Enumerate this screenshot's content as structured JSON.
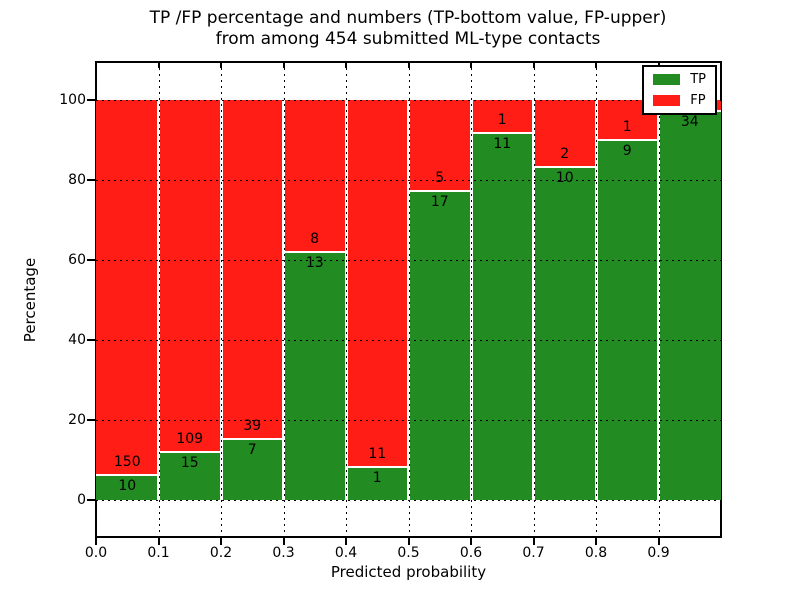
{
  "chart_data": {
    "type": "bar",
    "stacked": true,
    "normalized": "percent-of-bin",
    "title": "TP /FP percentage and numbers (TP-bottom value, FP-upper)",
    "subtitle": "from among 454 submitted ML-type contacts",
    "xlabel": "Predicted probability",
    "ylabel": "Percentage",
    "total_submitted": 454,
    "bins": [
      "0.0-0.1",
      "0.1-0.2",
      "0.2-0.3",
      "0.3-0.4",
      "0.4-0.5",
      "0.5-0.6",
      "0.6-0.7",
      "0.7-0.8",
      "0.8-0.9",
      "0.9-1.0"
    ],
    "series": [
      {
        "name": "TP",
        "color": "#228b22",
        "values": [
          10,
          15,
          7,
          13,
          1,
          17,
          11,
          10,
          9,
          34
        ]
      },
      {
        "name": "FP",
        "color": "#ff1d15",
        "values": [
          150,
          109,
          39,
          8,
          11,
          5,
          1,
          2,
          1,
          1
        ]
      }
    ],
    "tp_percent": [
      6.2,
      12.1,
      15.2,
      61.9,
      8.3,
      77.3,
      91.7,
      83.3,
      90.0,
      97.1
    ],
    "yticks": [
      0,
      20,
      40,
      60,
      80,
      100
    ],
    "xticks": [
      "0.0",
      "0.1",
      "0.2",
      "0.3",
      "0.4",
      "0.5",
      "0.6",
      "0.7",
      "0.8",
      "0.9"
    ],
    "ylim": [
      -9.5,
      109.5
    ],
    "grid": {
      "style": "dotted",
      "color": "#000000"
    },
    "legend": {
      "position": "upper-right",
      "entries": [
        {
          "label": "TP",
          "color": "#228b22"
        },
        {
          "label": "FP",
          "color": "#ff1d15"
        }
      ]
    },
    "last_bin_fp_label_hidden_by_legend": true
  }
}
